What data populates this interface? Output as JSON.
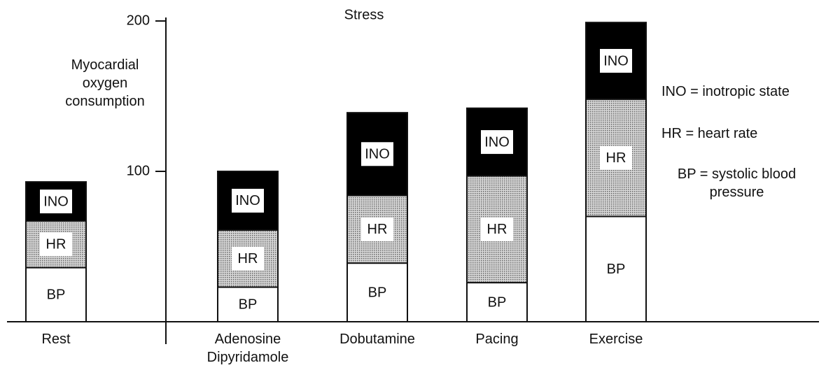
{
  "chart_data": {
    "type": "stacked-bar",
    "annotation": "Stress",
    "y_label": "Myocardial oxygen consumption",
    "categories": [
      "Rest",
      "Adenosine Dipyridamole",
      "Dobutamine",
      "Pacing",
      "Exercise"
    ],
    "series": [
      {
        "name": "BP",
        "color": "#ffffff",
        "values": [
          36,
          23,
          39,
          26,
          70
        ]
      },
      {
        "name": "HR",
        "color": "#b8b8b8",
        "values": [
          31,
          38,
          45,
          71,
          78
        ]
      },
      {
        "name": "INO",
        "color": "#000000",
        "values": [
          26,
          39,
          55,
          45,
          51
        ]
      }
    ],
    "legend": [
      "INO = inotropic state",
      "HR = heart rate",
      "BP = systolic blood pressure"
    ],
    "ylim": [
      0,
      200
    ],
    "yticks": [
      100,
      200
    ],
    "grid": false
  }
}
